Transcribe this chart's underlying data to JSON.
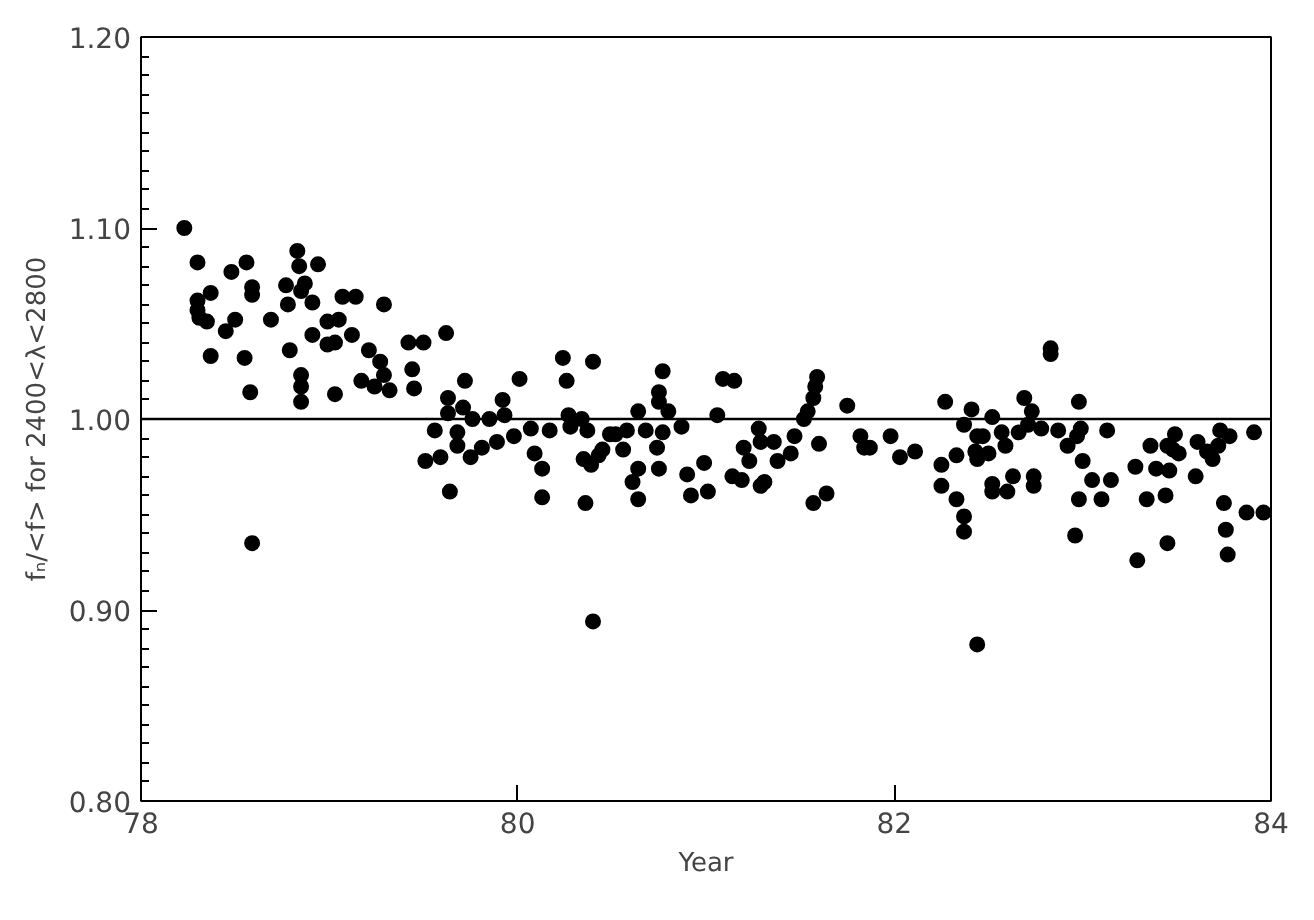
{
  "chart_data": {
    "type": "scatter",
    "xlabel": "Year",
    "ylabel": "fₙ/<f> for 2400<λ<2800",
    "marker": "circle",
    "grid": false,
    "xlim": [
      78,
      84
    ],
    "xticks": [
      78,
      80,
      82,
      84
    ],
    "ylim": [
      0.8,
      1.2
    ],
    "yticks": [
      {
        "value": 0.8,
        "label": "0.80"
      },
      {
        "value": 0.9,
        "label": "0.90"
      },
      {
        "value": 1.0,
        "label": "1.00"
      },
      {
        "value": 1.1,
        "label": "1.10"
      },
      {
        "value": 1.2,
        "label": "1.20"
      }
    ],
    "ref_lines": [
      {
        "axis": "y",
        "value": 1.0,
        "color": "#000000"
      }
    ],
    "series": [
      {
        "color": "#000000",
        "x": [
          78.23,
          78.3,
          78.3,
          78.3,
          78.31,
          78.35,
          78.37,
          78.37,
          78.45,
          78.48,
          78.5,
          78.55,
          78.56,
          78.58,
          78.59,
          78.59,
          78.59,
          78.69,
          78.77,
          78.78,
          78.79,
          78.83,
          78.84,
          78.85,
          78.85,
          78.85,
          78.85,
          78.87,
          78.91,
          78.91,
          78.94,
          78.99,
          78.99,
          79.03,
          79.03,
          79.05,
          79.07,
          79.12,
          79.14,
          79.17,
          79.21,
          79.24,
          79.27,
          79.29,
          79.29,
          79.32,
          79.42,
          79.44,
          79.45,
          79.5,
          79.51,
          79.56,
          79.59,
          79.62,
          79.63,
          79.63,
          79.64,
          79.68,
          79.68,
          79.71,
          79.72,
          79.75,
          79.76,
          79.81,
          79.85,
          79.89,
          79.92,
          79.93,
          79.98,
          80.01,
          80.07,
          80.09,
          80.13,
          80.13,
          80.17,
          80.24,
          80.26,
          80.27,
          80.28,
          80.34,
          80.35,
          80.36,
          80.37,
          80.39,
          80.4,
          80.4,
          80.43,
          80.45,
          80.49,
          80.52,
          80.56,
          80.58,
          80.61,
          80.64,
          80.64,
          80.64,
          80.68,
          80.74,
          80.75,
          80.75,
          80.75,
          80.77,
          80.77,
          80.8,
          80.87,
          80.9,
          80.92,
          80.99,
          81.01,
          81.06,
          81.09,
          81.14,
          81.15,
          81.19,
          81.2,
          81.23,
          81.28,
          81.29,
          81.29,
          81.31,
          81.36,
          81.38,
          81.45,
          81.47,
          81.52,
          81.54,
          81.57,
          81.58,
          81.59,
          81.57,
          81.6,
          81.64,
          81.75,
          81.82,
          81.84,
          81.87,
          81.98,
          82.03,
          82.11,
          82.25,
          82.25,
          82.27,
          82.33,
          82.33,
          82.37,
          82.37,
          82.37,
          82.41,
          82.43,
          82.44,
          82.44,
          82.44,
          82.47,
          82.5,
          82.52,
          82.52,
          82.52,
          82.57,
          82.59,
          82.6,
          82.63,
          82.66,
          82.69,
          82.71,
          82.73,
          82.74,
          82.74,
          82.78,
          82.83,
          82.83,
          82.87,
          82.92,
          82.96,
          82.97,
          82.98,
          82.98,
          82.99,
          83.0,
          83.05,
          83.1,
          83.13,
          83.15,
          83.28,
          83.29,
          83.34,
          83.36,
          83.39,
          83.44,
          83.45,
          83.45,
          83.46,
          83.48,
          83.49,
          83.51,
          83.6,
          83.61,
          83.66,
          83.69,
          83.72,
          83.73,
          83.75,
          83.76,
          83.77,
          83.78,
          83.87,
          83.91,
          83.96
        ],
        "values": [
          1.1,
          1.082,
          1.062,
          1.057,
          1.053,
          1.051,
          1.066,
          1.033,
          1.046,
          1.077,
          1.052,
          1.032,
          1.082,
          1.014,
          1.069,
          1.065,
          0.935,
          1.052,
          1.07,
          1.06,
          1.036,
          1.088,
          1.08,
          1.067,
          1.023,
          1.017,
          1.009,
          1.071,
          1.061,
          1.044,
          1.081,
          1.051,
          1.039,
          1.013,
          1.04,
          1.052,
          1.064,
          1.044,
          1.064,
          1.02,
          1.036,
          1.017,
          1.03,
          1.06,
          1.023,
          1.015,
          1.04,
          1.026,
          1.016,
          1.04,
          0.978,
          0.994,
          0.98,
          1.045,
          1.011,
          1.003,
          0.962,
          0.993,
          0.986,
          1.006,
          1.02,
          0.98,
          1.0,
          0.985,
          1.0,
          0.988,
          1.01,
          1.002,
          0.991,
          1.021,
          0.995,
          0.982,
          0.974,
          0.959,
          0.994,
          1.032,
          1.02,
          1.002,
          0.996,
          1.0,
          0.979,
          0.956,
          0.994,
          0.976,
          1.03,
          0.894,
          0.981,
          0.984,
          0.992,
          0.992,
          0.984,
          0.994,
          0.967,
          1.004,
          0.974,
          0.958,
          0.994,
          0.985,
          1.014,
          1.009,
          0.974,
          1.025,
          0.993,
          1.004,
          0.996,
          0.971,
          0.96,
          0.977,
          0.962,
          1.002,
          1.021,
          0.97,
          1.02,
          0.968,
          0.985,
          0.978,
          0.995,
          0.988,
          0.965,
          0.967,
          0.988,
          0.978,
          0.982,
          0.991,
          1.0,
          1.004,
          1.011,
          1.017,
          1.022,
          0.956,
          0.987,
          0.961,
          1.007,
          0.991,
          0.985,
          0.985,
          0.991,
          0.98,
          0.983,
          0.976,
          0.965,
          1.009,
          0.981,
          0.958,
          0.949,
          0.941,
          0.997,
          1.005,
          0.983,
          0.991,
          0.979,
          0.882,
          0.991,
          0.982,
          1.001,
          0.966,
          0.962,
          0.993,
          0.986,
          0.962,
          0.97,
          0.993,
          1.011,
          0.997,
          1.004,
          0.97,
          0.965,
          0.995,
          1.034,
          1.037,
          0.994,
          0.986,
          0.939,
          0.991,
          1.009,
          0.958,
          0.995,
          0.978,
          0.968,
          0.958,
          0.994,
          0.968,
          0.975,
          0.926,
          0.958,
          0.986,
          0.974,
          0.96,
          0.935,
          0.986,
          0.973,
          0.984,
          0.992,
          0.982,
          0.97,
          0.988,
          0.983,
          0.979,
          0.986,
          0.994,
          0.956,
          0.942,
          0.929,
          0.991,
          0.951,
          0.993,
          0.951
        ]
      }
    ]
  }
}
